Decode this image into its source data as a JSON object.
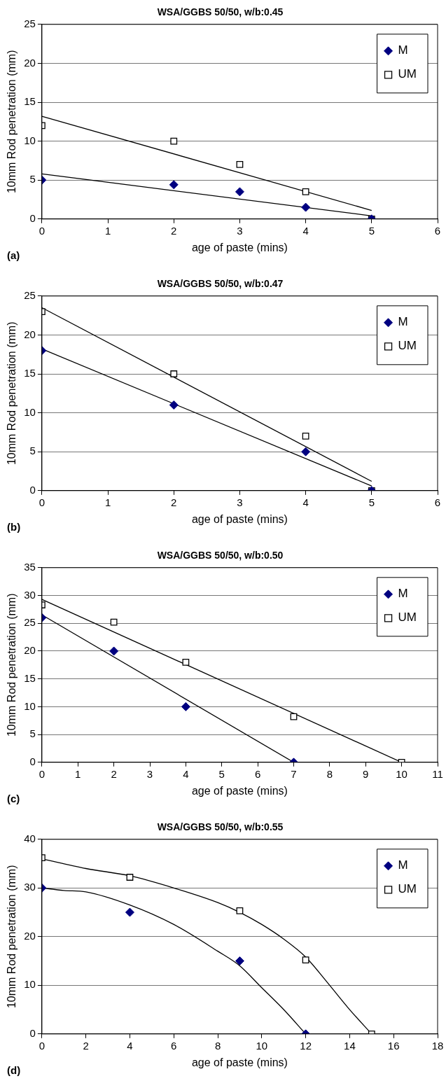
{
  "chart_data": [
    {
      "type": "scatter",
      "title": "WSA/GGBS 50/50, w/b:0.45",
      "xlabel": "age of paste (mins)",
      "ylabel": "10mm Rod penetration (mm)",
      "annotations": [
        "(a)"
      ],
      "series": [
        {
          "name": "M",
          "color": "#000080",
          "marker": "diamond",
          "x": [
            0,
            2,
            3,
            4,
            5
          ],
          "values": [
            5,
            4.4,
            3.5,
            1.5,
            0
          ]
        },
        {
          "name": "UM",
          "color": "#000000",
          "marker": "square",
          "x": [
            0,
            2,
            3,
            4,
            5
          ],
          "values": [
            12,
            10,
            7,
            3.5,
            0
          ]
        },
        {
          "type": "line",
          "color": "#000000",
          "marker": "none",
          "x": [
            0,
            5
          ],
          "values": [
            13.2,
            1.1
          ]
        },
        {
          "type": "line",
          "color": "#000000",
          "marker": "none",
          "x": [
            0,
            5
          ],
          "values": [
            5.8,
            0.4
          ]
        }
      ],
      "xlim": [
        0,
        6
      ],
      "xticks": [
        0,
        1,
        2,
        3,
        4,
        5,
        6
      ],
      "ylim": [
        0,
        25
      ],
      "yticks": [
        0,
        5,
        10,
        15,
        20,
        25
      ],
      "grid": "y",
      "legend": "top right"
    },
    {
      "type": "scatter",
      "title": "WSA/GGBS 50/50, w/b:0.47",
      "xlabel": "age of paste (mins)",
      "ylabel": "10mm Rod penetration (mm)",
      "annotations": [
        "(b)"
      ],
      "series": [
        {
          "name": "M",
          "color": "#000080",
          "marker": "diamond",
          "x": [
            0,
            2,
            4,
            5
          ],
          "values": [
            18,
            11,
            5,
            0
          ]
        },
        {
          "name": "UM",
          "color": "#000000",
          "marker": "square",
          "x": [
            0,
            2,
            4,
            5
          ],
          "values": [
            23,
            15,
            7,
            0
          ]
        },
        {
          "type": "line",
          "color": "#000000",
          "marker": "none",
          "x": [
            0,
            5
          ],
          "values": [
            23.5,
            1.2
          ]
        },
        {
          "type": "line",
          "color": "#000000",
          "marker": "none",
          "x": [
            0,
            5
          ],
          "values": [
            18.2,
            0.6
          ]
        }
      ],
      "xlim": [
        0,
        6
      ],
      "xticks": [
        0,
        1,
        2,
        3,
        4,
        5,
        6
      ],
      "ylim": [
        0,
        25
      ],
      "yticks": [
        0,
        5,
        10,
        15,
        20,
        25
      ],
      "grid": "y",
      "legend": "top right"
    },
    {
      "type": "scatter",
      "title": "WSA/GGBS 50/50, w/b:0.50",
      "xlabel": "age of paste (mins)",
      "ylabel": "10mm Rod penetration (mm)",
      "annotations": [
        "(c)"
      ],
      "series": [
        {
          "name": "M",
          "color": "#000080",
          "marker": "diamond",
          "x": [
            0,
            2,
            4,
            7
          ],
          "values": [
            26,
            20,
            10,
            0
          ]
        },
        {
          "name": "UM",
          "color": "#000000",
          "marker": "square",
          "x": [
            0,
            2,
            4,
            7,
            10
          ],
          "values": [
            28.3,
            25.2,
            18,
            8.2,
            0
          ]
        },
        {
          "type": "line",
          "color": "#000000",
          "marker": "none",
          "x": [
            0,
            7
          ],
          "values": [
            26.5,
            0
          ]
        },
        {
          "type": "line",
          "color": "#000000",
          "marker": "none",
          "x": [
            0,
            10
          ],
          "values": [
            29.3,
            0
          ]
        }
      ],
      "xlim": [
        0,
        11
      ],
      "xticks": [
        0,
        1,
        2,
        3,
        4,
        5,
        6,
        7,
        8,
        9,
        10,
        11
      ],
      "ylim": [
        0,
        35
      ],
      "yticks": [
        0,
        5,
        10,
        15,
        20,
        25,
        30,
        35
      ],
      "grid": "y",
      "legend": "top right"
    },
    {
      "type": "scatter",
      "title": "WSA/GGBS 50/50, w/b:0.55",
      "xlabel": "age of paste (mins)",
      "ylabel": "10mm Rod penetration (mm)",
      "annotations": [
        "(d)"
      ],
      "series": [
        {
          "name": "M",
          "color": "#000080",
          "marker": "diamond",
          "x": [
            0,
            4,
            9,
            12
          ],
          "values": [
            30,
            25,
            15,
            0
          ]
        },
        {
          "name": "UM",
          "color": "#000000",
          "marker": "square",
          "x": [
            0,
            4,
            9,
            12,
            15
          ],
          "values": [
            36.2,
            32.2,
            25.3,
            15.2,
            0
          ]
        },
        {
          "type": "line",
          "color": "#000000",
          "marker": "none",
          "x": [
            0,
            1,
            2,
            4,
            6,
            8,
            9,
            10,
            11,
            12
          ],
          "values": [
            30,
            29.5,
            29.2,
            26.5,
            22.5,
            17,
            14,
            9.5,
            5,
            0
          ]
        },
        {
          "type": "line",
          "color": "#000000",
          "marker": "none",
          "x": [
            0,
            2,
            4,
            6,
            8,
            9,
            10,
            11,
            12,
            13,
            14,
            15
          ],
          "values": [
            36,
            34,
            32.5,
            30,
            27,
            25,
            22.5,
            19.5,
            15.8,
            10.5,
            5,
            0
          ]
        }
      ],
      "xlim": [
        0,
        18
      ],
      "xticks": [
        0,
        2,
        4,
        6,
        8,
        10,
        12,
        14,
        16,
        18
      ],
      "ylim": [
        0,
        40
      ],
      "yticks": [
        0,
        10,
        20,
        30,
        40
      ],
      "grid": "y",
      "legend": "top right"
    }
  ]
}
